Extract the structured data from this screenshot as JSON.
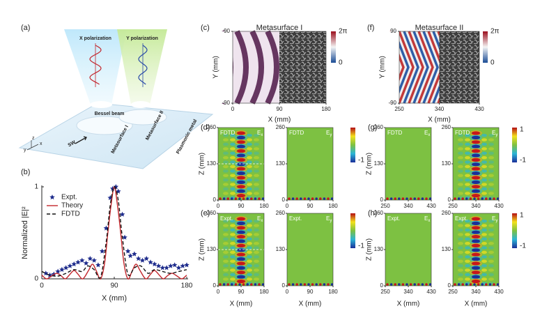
{
  "panel_a": {
    "label": "(a)",
    "x_polarization": "X polarization",
    "y_polarization": "Y polarization",
    "bessel_beam": "Bessel beam",
    "metasurface_1": "Metasurface I",
    "metasurface_2": "Metasurface II",
    "plasmonic_metal": "Plasmonic metal",
    "sw": "SW",
    "axis_x": "x",
    "axis_y": "y",
    "axis_z": "z"
  },
  "chart_data": {
    "type": "line",
    "label": "(b)",
    "xlabel": "X (mm)",
    "ylabel": "Normalized |E|²",
    "xlim": [
      0,
      180
    ],
    "ylim": [
      0,
      1
    ],
    "xticks": [
      0,
      90,
      180
    ],
    "yticks": [
      0,
      1
    ],
    "legend": "top-left",
    "series": [
      {
        "name": "Expt.",
        "color": "#1e2c8c",
        "marker": "star",
        "x": [
          5,
          10,
          15,
          20,
          25,
          30,
          35,
          40,
          45,
          50,
          55,
          60,
          65,
          70,
          75,
          80,
          85,
          88,
          92,
          95,
          100,
          103,
          107,
          110,
          115,
          120,
          125,
          130,
          135,
          140,
          145,
          150,
          155,
          160,
          165,
          170,
          175,
          180
        ],
        "values": [
          0.06,
          0.04,
          0.05,
          0.08,
          0.1,
          0.12,
          0.14,
          0.16,
          0.18,
          0.2,
          0.17,
          0.22,
          0.2,
          0.15,
          0.3,
          0.55,
          0.88,
          0.98,
          1,
          0.95,
          0.7,
          0.45,
          0.3,
          0.25,
          0.27,
          0.22,
          0.2,
          0.22,
          0.18,
          0.16,
          0.14,
          0.12,
          0.12,
          0.14,
          0.15,
          0.12,
          0.14,
          0.15
        ]
      },
      {
        "name": "Theory",
        "color": "#c3262c",
        "x": [
          0,
          6,
          12,
          18,
          23,
          29,
          34,
          40,
          45,
          51,
          58,
          63,
          68,
          73,
          78,
          82,
          86,
          90,
          94,
          98,
          102,
          107,
          112,
          117,
          122,
          129,
          135,
          140,
          146,
          151,
          157,
          162,
          168,
          174,
          180
        ],
        "values": [
          0.04,
          0,
          0.03,
          0.06,
          0.04,
          0,
          0.04,
          0.09,
          0.05,
          0,
          0.09,
          0.16,
          0.08,
          0,
          0.17,
          0.5,
          0.8,
          1,
          0.8,
          0.5,
          0.17,
          0,
          0.08,
          0.16,
          0.09,
          0,
          0.05,
          0.09,
          0.04,
          0,
          0.04,
          0.06,
          0.03,
          0,
          0.04
        ]
      },
      {
        "name": "FDTD",
        "color": "#111111",
        "dash": true,
        "x": [
          0,
          10,
          20,
          30,
          40,
          50,
          57,
          65,
          73,
          80,
          85,
          90,
          95,
          100,
          107,
          115,
          123,
          132,
          140,
          150,
          160,
          170,
          180
        ],
        "values": [
          0.08,
          0.04,
          0.03,
          0.06,
          0.1,
          0.08,
          0.14,
          0.1,
          0.02,
          0.4,
          0.8,
          1,
          0.85,
          0.45,
          0.05,
          0.12,
          0.14,
          0.06,
          0.1,
          0.08,
          0.06,
          0.08,
          0.1
        ]
      }
    ]
  },
  "metasurfaces": [
    {
      "label": "(c)",
      "title": "Metasurface I",
      "xlabel": "X (mm)",
      "ylabel": "Y (mm)",
      "xlim": [
        0,
        180
      ],
      "ylim": [
        -90,
        90
      ],
      "xticks": [
        0,
        90,
        180
      ],
      "yticks": [
        -90,
        90
      ],
      "clim": [
        0,
        6.283
      ],
      "colorbar_ticks": [
        {
          "value": 6.283,
          "label": "2π"
        },
        0
      ]
    },
    {
      "label": "(f)",
      "title": "Metasurface II",
      "xlabel": "X (mm)",
      "ylabel": "Y (mm)",
      "xlim": [
        250,
        430
      ],
      "ylim": [
        -90,
        90
      ],
      "xticks": [
        250,
        340,
        430
      ],
      "yticks": [
        -90,
        90
      ],
      "clim": [
        0,
        6.283
      ],
      "colorbar_ticks": [
        {
          "value": 6.283,
          "label": "2π"
        },
        0
      ]
    }
  ],
  "field_maps": [
    {
      "label": "(d)",
      "ylabel": "Z (mm)",
      "xlim": [
        0,
        180
      ],
      "ylim": [
        0,
        260
      ],
      "xticks": [
        0,
        90,
        180
      ],
      "yticks": [
        0,
        130,
        260
      ],
      "clim": [
        -1,
        1
      ],
      "colorbar_ticks": [
        -1
      ],
      "plots": [
        {
          "method": "FDTD",
          "field": "E",
          "component": "x"
        },
        {
          "method": "FDTD",
          "field": "E",
          "component": "y"
        }
      ]
    },
    {
      "label": "(e)",
      "ylabel": "Z (mm)",
      "xlabel": "X (mm)",
      "xlim": [
        0,
        180
      ],
      "ylim": [
        0,
        260
      ],
      "xticks": [
        0,
        90,
        180
      ],
      "yticks": [
        0,
        130,
        260
      ],
      "clim": [
        -1,
        1
      ],
      "colorbar_ticks": [
        -1
      ],
      "plots": [
        {
          "method": "Expt.",
          "field": "E",
          "component": "x"
        },
        {
          "method": "Expt.",
          "field": "E",
          "component": "y"
        }
      ]
    },
    {
      "label": "(g)",
      "ylabel": "Z (mm)",
      "xlim": [
        250,
        430
      ],
      "ylim": [
        0,
        260
      ],
      "xticks": [
        250,
        340,
        430
      ],
      "yticks": [
        0,
        130,
        260
      ],
      "clim": [
        -1,
        1
      ],
      "colorbar_ticks": [
        1,
        -1
      ],
      "plots": [
        {
          "method": "FDTD",
          "field": "E",
          "component": "x"
        },
        {
          "method": "FDTD",
          "field": "E",
          "component": "y"
        }
      ]
    },
    {
      "label": "(h)",
      "ylabel": "Z (mm)",
      "xlabel": "X (mm)",
      "xlim": [
        250,
        430
      ],
      "ylim": [
        0,
        260
      ],
      "xticks": [
        250,
        340,
        430
      ],
      "yticks": [
        0,
        130,
        260
      ],
      "clim": [
        -1,
        1
      ],
      "colorbar_ticks": [
        1,
        -1
      ],
      "plots": [
        {
          "method": "Expt.",
          "field": "E",
          "component": "x"
        },
        {
          "method": "Expt.",
          "field": "E",
          "component": "y"
        }
      ]
    }
  ]
}
